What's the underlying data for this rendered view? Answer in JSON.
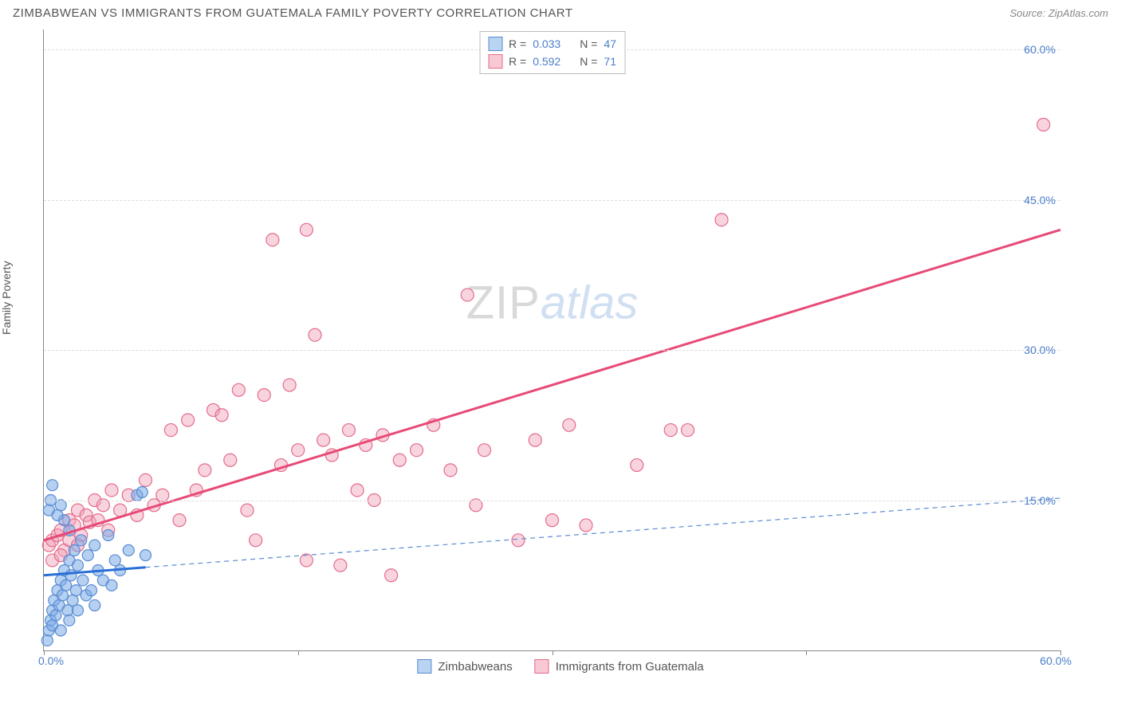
{
  "header": {
    "title": "ZIMBABWEAN VS IMMIGRANTS FROM GUATEMALA FAMILY POVERTY CORRELATION CHART",
    "source": "Source: ZipAtlas.com"
  },
  "ylabel": "Family Poverty",
  "watermark": {
    "part1": "ZIP",
    "part2": "atlas"
  },
  "axes": {
    "xmin": 0.0,
    "xmax": 60.0,
    "ymin": 0.0,
    "ymax": 62.0,
    "x_start_label": "0.0%",
    "x_end_label": "60.0%",
    "x_tick_positions_pct": [
      0,
      25,
      50,
      75,
      100
    ],
    "y_ticks": [
      {
        "value": 15.0,
        "label": "15.0%"
      },
      {
        "value": 30.0,
        "label": "30.0%"
      },
      {
        "value": 45.0,
        "label": "45.0%"
      },
      {
        "value": 60.0,
        "label": "60.0%"
      }
    ],
    "grid_color": "#dddddd"
  },
  "stats_legend": {
    "rows": [
      {
        "swatch_fill": "#b9d4f2",
        "swatch_border": "#5a8cd2",
        "r_label": "R =",
        "r_value": "0.033",
        "n_label": "N =",
        "n_value": "47"
      },
      {
        "swatch_fill": "#f8c9d4",
        "swatch_border": "#e56b8a",
        "r_label": "R =",
        "r_value": "0.592",
        "n_label": "N =",
        "n_value": "71"
      }
    ]
  },
  "bottom_legend": {
    "items": [
      {
        "swatch_fill": "#b9d4f2",
        "swatch_border": "#5a8cd2",
        "label": "Zimbabweans"
      },
      {
        "swatch_fill": "#f8c9d4",
        "swatch_border": "#e56b8a",
        "label": "Immigrants from Guatemala"
      }
    ]
  },
  "series": {
    "blue": {
      "point_fill": "rgba(120,170,230,0.55)",
      "point_stroke": "#5a8cd2",
      "marker_radius": 7,
      "data": [
        [
          0.2,
          1.0
        ],
        [
          0.3,
          2.0
        ],
        [
          0.4,
          3.0
        ],
        [
          0.5,
          2.5
        ],
        [
          0.5,
          4.0
        ],
        [
          0.6,
          5.0
        ],
        [
          0.7,
          3.5
        ],
        [
          0.8,
          6.0
        ],
        [
          0.9,
          4.5
        ],
        [
          1.0,
          7.0
        ],
        [
          1.0,
          2.0
        ],
        [
          1.1,
          5.5
        ],
        [
          1.2,
          8.0
        ],
        [
          1.3,
          6.5
        ],
        [
          1.4,
          4.0
        ],
        [
          1.5,
          9.0
        ],
        [
          1.5,
          3.0
        ],
        [
          1.6,
          7.5
        ],
        [
          1.7,
          5.0
        ],
        [
          1.8,
          10.0
        ],
        [
          1.9,
          6.0
        ],
        [
          2.0,
          8.5
        ],
        [
          2.0,
          4.0
        ],
        [
          2.2,
          11.0
        ],
        [
          2.3,
          7.0
        ],
        [
          2.5,
          5.5
        ],
        [
          2.6,
          9.5
        ],
        [
          2.8,
          6.0
        ],
        [
          3.0,
          10.5
        ],
        [
          3.0,
          4.5
        ],
        [
          3.2,
          8.0
        ],
        [
          3.5,
          7.0
        ],
        [
          3.8,
          11.5
        ],
        [
          4.0,
          6.5
        ],
        [
          4.2,
          9.0
        ],
        [
          4.5,
          8.0
        ],
        [
          5.0,
          10.0
        ],
        [
          5.5,
          15.5
        ],
        [
          5.8,
          15.8
        ],
        [
          6.0,
          9.5
        ],
        [
          0.3,
          14.0
        ],
        [
          0.4,
          15.0
        ],
        [
          1.0,
          14.5
        ],
        [
          1.2,
          13.0
        ],
        [
          1.5,
          12.0
        ],
        [
          0.8,
          13.5
        ],
        [
          0.5,
          16.5
        ]
      ],
      "trend": {
        "color": "#2a6fd6",
        "width": 3,
        "x1": 0.0,
        "y1": 7.5,
        "x2": 6.0,
        "y2": 8.3,
        "dash": ""
      },
      "projection": {
        "color": "#5a8cd2",
        "width": 1.2,
        "x1": 6.0,
        "y1": 8.3,
        "x2": 60.0,
        "y2": 15.2,
        "dash": "6,5"
      }
    },
    "pink": {
      "point_fill": "rgba(240,160,185,0.45)",
      "point_stroke": "#e56b8a",
      "marker_radius": 8,
      "data": [
        [
          0.3,
          10.5
        ],
        [
          0.5,
          11.0
        ],
        [
          0.8,
          11.5
        ],
        [
          1.0,
          12.0
        ],
        [
          1.2,
          10.0
        ],
        [
          1.5,
          13.0
        ],
        [
          1.8,
          12.5
        ],
        [
          2.0,
          14.0
        ],
        [
          2.2,
          11.5
        ],
        [
          2.5,
          13.5
        ],
        [
          2.7,
          12.8
        ],
        [
          3.0,
          15.0
        ],
        [
          3.2,
          13.0
        ],
        [
          3.5,
          14.5
        ],
        [
          3.8,
          12.0
        ],
        [
          4.0,
          16.0
        ],
        [
          4.5,
          14.0
        ],
        [
          5.0,
          15.5
        ],
        [
          5.5,
          13.5
        ],
        [
          6.0,
          17.0
        ],
        [
          6.5,
          14.5
        ],
        [
          7.0,
          15.5
        ],
        [
          7.5,
          22.0
        ],
        [
          8.0,
          13.0
        ],
        [
          8.5,
          23.0
        ],
        [
          9.0,
          16.0
        ],
        [
          9.5,
          18.0
        ],
        [
          10.0,
          24.0
        ],
        [
          10.5,
          23.5
        ],
        [
          11.0,
          19.0
        ],
        [
          11.5,
          26.0
        ],
        [
          12.0,
          14.0
        ],
        [
          12.5,
          11.0
        ],
        [
          13.0,
          25.5
        ],
        [
          13.5,
          41.0
        ],
        [
          14.0,
          18.5
        ],
        [
          14.5,
          26.5
        ],
        [
          15.0,
          20.0
        ],
        [
          15.5,
          9.0
        ],
        [
          16.0,
          31.5
        ],
        [
          16.5,
          21.0
        ],
        [
          17.0,
          19.5
        ],
        [
          17.5,
          8.5
        ],
        [
          18.0,
          22.0
        ],
        [
          18.5,
          16.0
        ],
        [
          19.0,
          20.5
        ],
        [
          19.5,
          15.0
        ],
        [
          20.0,
          21.5
        ],
        [
          20.5,
          7.5
        ],
        [
          21.0,
          19.0
        ],
        [
          22.0,
          20.0
        ],
        [
          23.0,
          22.5
        ],
        [
          24.0,
          18.0
        ],
        [
          25.0,
          35.5
        ],
        [
          25.5,
          14.5
        ],
        [
          26.0,
          20.0
        ],
        [
          28.0,
          11.0
        ],
        [
          29.0,
          21.0
        ],
        [
          30.0,
          13.0
        ],
        [
          31.0,
          22.5
        ],
        [
          32.0,
          12.5
        ],
        [
          35.0,
          18.5
        ],
        [
          38.0,
          22.0
        ],
        [
          40.0,
          43.0
        ],
        [
          37.0,
          22.0
        ],
        [
          0.5,
          9.0
        ],
        [
          1.0,
          9.5
        ],
        [
          1.5,
          11.0
        ],
        [
          2.0,
          10.5
        ],
        [
          59.0,
          52.5
        ],
        [
          15.5,
          42.0
        ]
      ],
      "trend": {
        "color": "#e84a77",
        "width": 3,
        "x1": 0.0,
        "y1": 11.0,
        "x2": 60.0,
        "y2": 42.0,
        "dash": ""
      }
    }
  }
}
